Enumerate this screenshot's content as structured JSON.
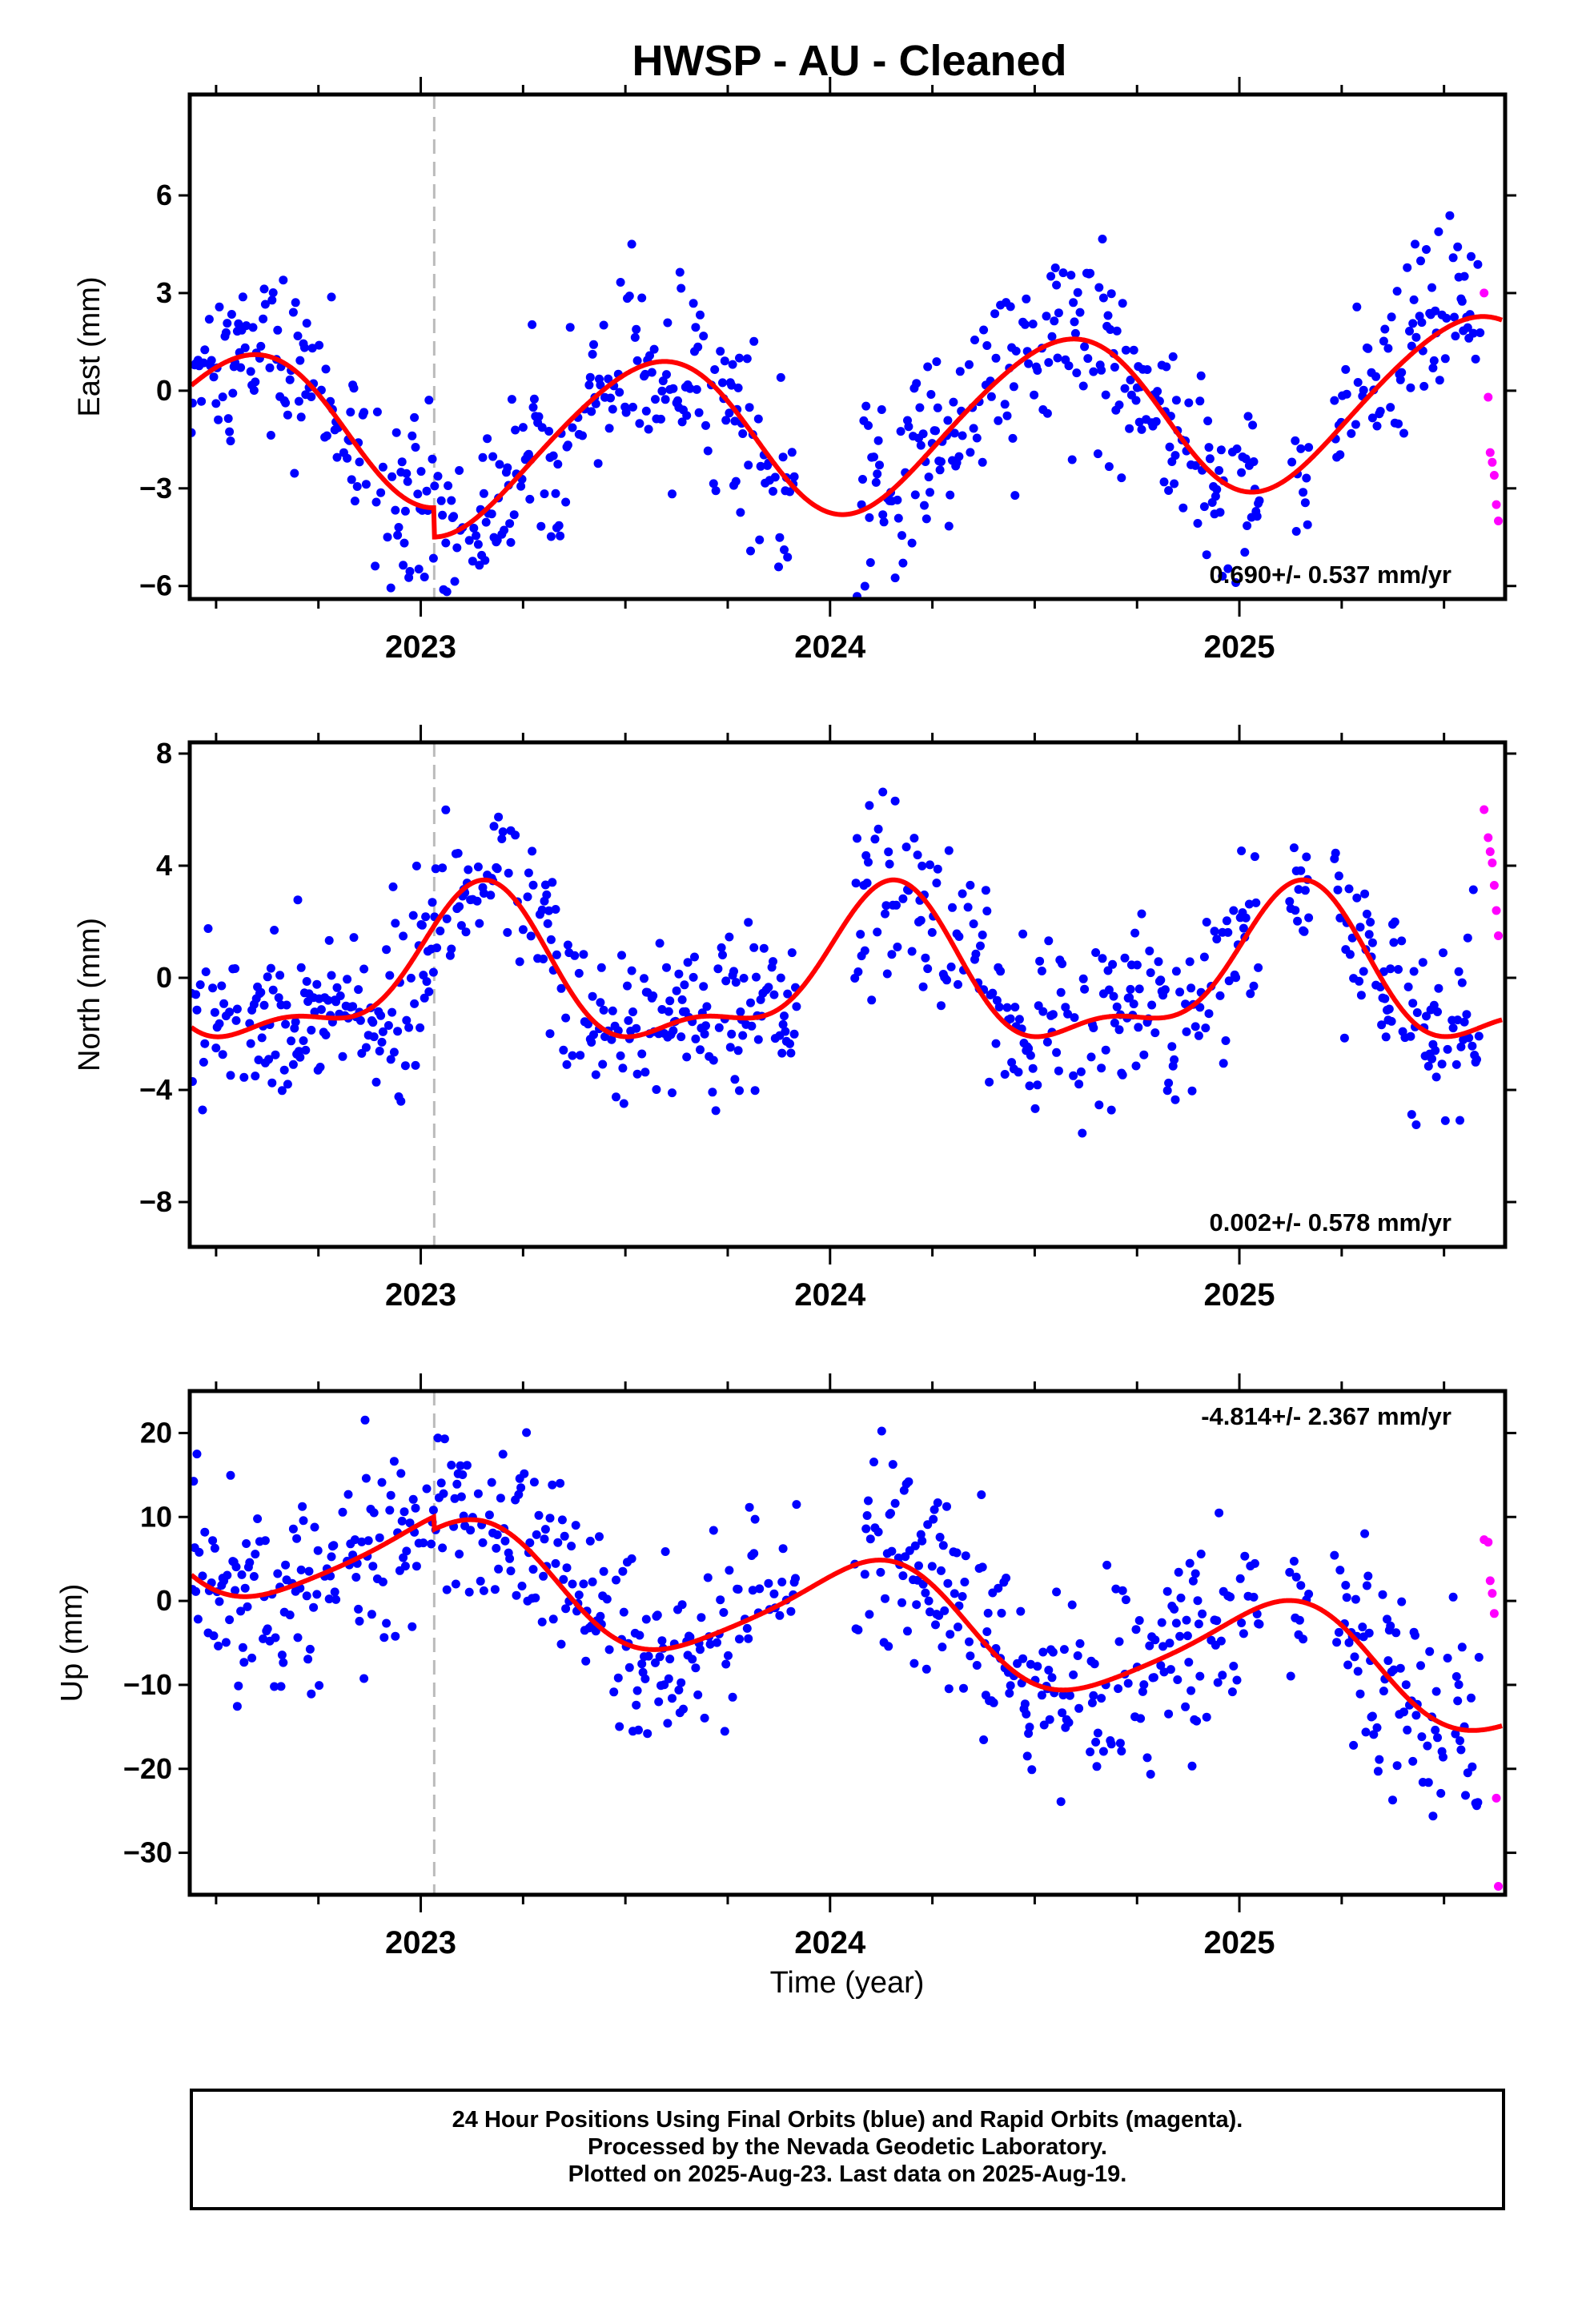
{
  "chart_data": {
    "type": "scatter",
    "title": "HWSP  - AU - Cleaned",
    "xlabel": "Time (year)",
    "x_tick_labels": [
      "2023",
      "2024",
      "2025"
    ],
    "x_range": [
      "2022-06-09",
      "2025-08-26"
    ],
    "event_line": "2023-01-13",
    "series_legend": {
      "final": "blue",
      "rapid": "magenta",
      "model": "red"
    },
    "colors": {
      "final": "#0000ff",
      "rapid": "#ff00ff",
      "model": "#ff0000",
      "event": "#bbbbbb"
    },
    "panels": [
      {
        "ylabel": "East (mm)",
        "ylim": [
          -6.4,
          9.1
        ],
        "yticks": [
          -6,
          -3,
          0,
          3,
          6
        ],
        "rate_label": "0.690+/- 0.537 mm/yr",
        "model": {
          "offset": -0.35,
          "rate": 0.69,
          "annual_cos": -2.3,
          "annual_sin": -0.9,
          "semi_cos": -0.2,
          "semi_sin": 0.1,
          "step": -0.9,
          "noise": 1.4
        },
        "rapid_points": [
          [
            0.0,
            3.0
          ],
          [
            0.01,
            -0.2
          ],
          [
            0.015,
            -1.9
          ],
          [
            0.02,
            -2.2
          ],
          [
            0.025,
            -2.6
          ],
          [
            0.03,
            -3.5
          ],
          [
            0.035,
            -4.0
          ]
        ]
      },
      {
        "ylabel": "North (mm)",
        "ylim": [
          -9.6,
          8.4
        ],
        "yticks": [
          -8,
          -4,
          0,
          4,
          8
        ],
        "rate_label": "0.002+/- 0.578 mm/yr",
        "model": {
          "offset": 0.0,
          "rate": 0.002,
          "annual_cos": 1.6,
          "annual_sin": 1.9,
          "semi_cos": -0.5,
          "semi_sin": 0.9,
          "step": 0.0,
          "noise": 1.5
        },
        "rapid_points": [
          [
            0.0,
            6.0
          ],
          [
            0.01,
            5.0
          ],
          [
            0.015,
            4.5
          ],
          [
            0.02,
            4.1
          ],
          [
            0.025,
            3.3
          ],
          [
            0.03,
            2.4
          ],
          [
            0.035,
            1.5
          ]
        ]
      },
      {
        "ylabel": "Up (mm)",
        "ylim": [
          -35,
          25
        ],
        "yticks": [
          -30,
          -20,
          -10,
          0,
          10,
          20
        ],
        "rate_label": "-4.814+/- 2.367 mm/yr",
        "model": {
          "offset": 0.0,
          "rate": -4.814,
          "annual_cos": 5.2,
          "annual_sin": 3.8,
          "semi_cos": -0.8,
          "semi_sin": 0.6,
          "step": -1.5,
          "noise": 5.5
        },
        "rapid_points": [
          [
            0.0,
            7.3
          ],
          [
            0.01,
            7.0
          ],
          [
            0.015,
            2.4
          ],
          [
            0.02,
            0.9
          ],
          [
            0.025,
            -1.5
          ],
          [
            0.03,
            -23.5
          ],
          [
            0.035,
            -34.0
          ]
        ]
      }
    ]
  },
  "footer": {
    "line1": "24 Hour Positions Using Final Orbits (blue) and Rapid Orbits (magenta).",
    "line2": "Processed by the Nevada Geodetic Laboratory.",
    "line3": "Plotted on 2025-Aug-23. Last data on 2025-Aug-19."
  }
}
